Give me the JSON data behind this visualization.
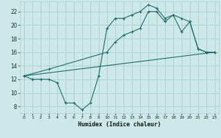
{
  "title": "",
  "xlabel": "Humidex (Indice chaleur)",
  "bg_color": "#cce8e8",
  "grid_color": "#aacccc",
  "line_color": "#1a6666",
  "xlim": [
    -0.5,
    23.5
  ],
  "ylim": [
    7,
    23.5
  ],
  "xticks": [
    0,
    1,
    2,
    3,
    4,
    5,
    6,
    7,
    8,
    9,
    10,
    11,
    12,
    13,
    14,
    15,
    16,
    17,
    18,
    19,
    20,
    21,
    22,
    23
  ],
  "yticks": [
    8,
    10,
    12,
    14,
    16,
    18,
    20,
    22
  ],
  "line1_x": [
    0,
    1,
    2,
    3,
    4,
    5,
    6,
    7,
    8,
    9,
    10,
    11,
    12,
    13,
    14,
    15,
    16,
    17,
    18,
    19,
    20,
    21,
    22,
    23
  ],
  "line1_y": [
    12.5,
    12.0,
    12.0,
    12.0,
    11.5,
    8.5,
    8.5,
    7.5,
    8.5,
    12.5,
    19.5,
    21.0,
    21.0,
    21.5,
    22.0,
    23.0,
    22.5,
    21.0,
    21.5,
    19.0,
    20.5,
    16.5,
    16.0,
    16.0
  ],
  "line2_x": [
    0,
    3,
    10,
    11,
    12,
    13,
    14,
    15,
    16,
    17,
    18,
    19,
    20,
    21,
    22,
    23
  ],
  "line2_y": [
    12.5,
    13.5,
    16.0,
    17.5,
    18.5,
    19.0,
    19.5,
    22.0,
    22.0,
    20.5,
    21.5,
    21.0,
    20.5,
    16.5,
    16.0,
    16.0
  ],
  "line3_x": [
    0,
    23
  ],
  "line3_y": [
    12.5,
    16.0
  ]
}
